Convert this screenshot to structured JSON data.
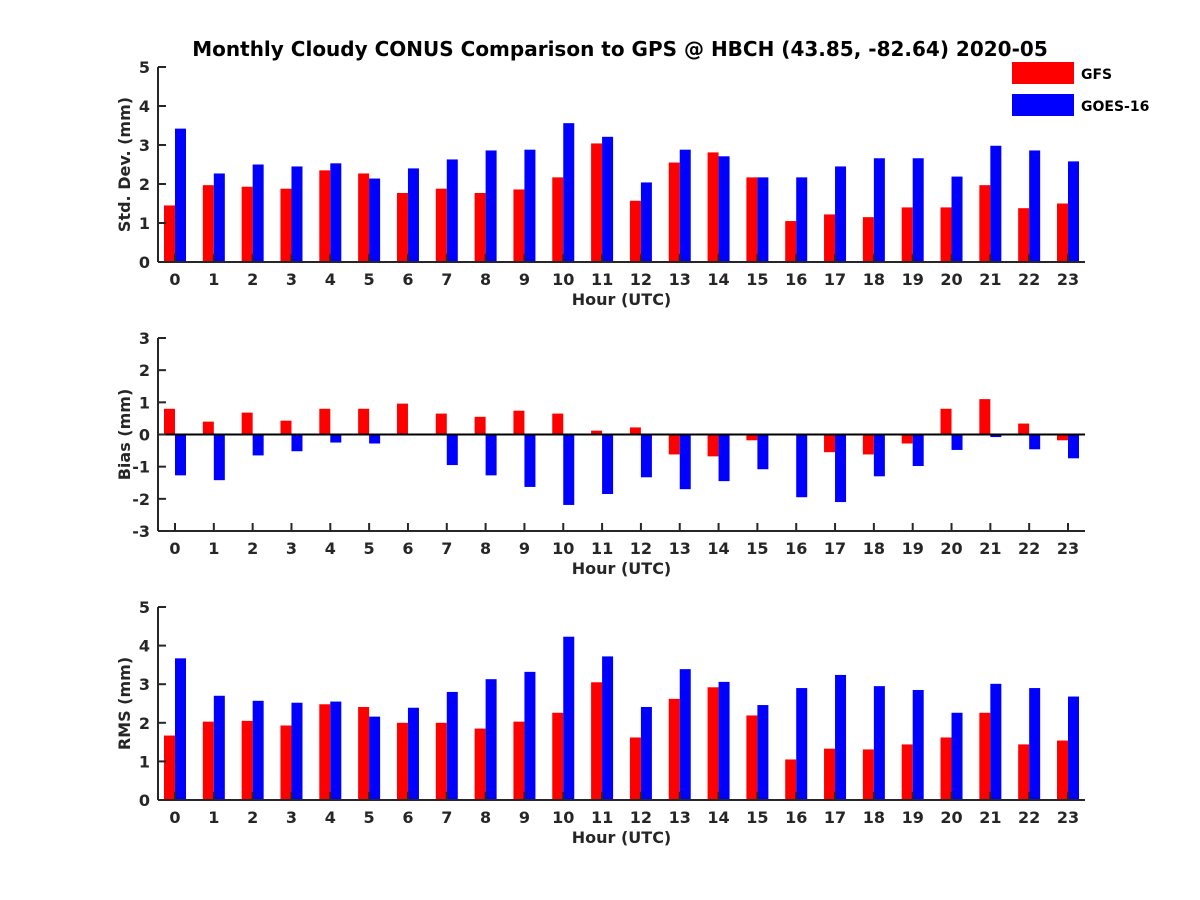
{
  "figure": {
    "title": "Monthly Cloudy CONUS Comparison to GPS @ HBCH (43.85, -82.64) 2020-05"
  },
  "legend": [
    {
      "label": "GFS",
      "color": "#ff0000"
    },
    {
      "label": "GOES-16",
      "color": "#0000ff"
    }
  ],
  "chart_data": [
    {
      "type": "bar",
      "xlabel": "Hour (UTC)",
      "ylabel": "Std. Dev. (mm)",
      "ylim": [
        0,
        5
      ],
      "yticks": [
        0,
        1,
        2,
        3,
        4,
        5
      ],
      "categories": [
        "0",
        "1",
        "2",
        "3",
        "4",
        "5",
        "6",
        "7",
        "8",
        "9",
        "10",
        "11",
        "12",
        "13",
        "14",
        "15",
        "16",
        "17",
        "18",
        "19",
        "20",
        "21",
        "22",
        "23"
      ],
      "series": [
        {
          "name": "GFS",
          "color": "#ff0000",
          "values": [
            1.45,
            1.97,
            1.93,
            1.88,
            2.35,
            2.27,
            1.77,
            1.88,
            1.77,
            1.86,
            2.17,
            3.04,
            1.57,
            2.55,
            2.81,
            2.17,
            1.05,
            1.22,
            1.15,
            1.4,
            1.4,
            1.97,
            1.38,
            1.5
          ]
        },
        {
          "name": "GOES-16",
          "color": "#0000ff",
          "values": [
            3.42,
            2.27,
            2.5,
            2.45,
            2.53,
            2.14,
            2.4,
            2.63,
            2.86,
            2.88,
            3.56,
            3.21,
            2.04,
            2.88,
            2.71,
            2.17,
            2.17,
            2.45,
            2.66,
            2.66,
            2.19,
            2.98,
            2.86,
            2.58
          ]
        }
      ]
    },
    {
      "type": "bar",
      "xlabel": "Hour (UTC)",
      "ylabel": "Bias (mm)",
      "ylim": [
        -3,
        3
      ],
      "yticks": [
        -3,
        -2,
        -1,
        0,
        1,
        2,
        3
      ],
      "categories": [
        "0",
        "1",
        "2",
        "3",
        "4",
        "5",
        "6",
        "7",
        "8",
        "9",
        "10",
        "11",
        "12",
        "13",
        "14",
        "15",
        "16",
        "17",
        "18",
        "19",
        "20",
        "21",
        "22",
        "23"
      ],
      "series": [
        {
          "name": "GFS",
          "color": "#ff0000",
          "values": [
            0.8,
            0.4,
            0.68,
            0.43,
            0.8,
            0.8,
            0.96,
            0.65,
            0.55,
            0.74,
            0.65,
            0.12,
            0.22,
            -0.62,
            -0.68,
            -0.18,
            -0.03,
            -0.55,
            -0.62,
            -0.28,
            0.8,
            1.1,
            0.34,
            -0.18
          ]
        },
        {
          "name": "GOES-16",
          "color": "#0000ff",
          "values": [
            -1.27,
            -1.42,
            -0.65,
            -0.52,
            -0.25,
            -0.28,
            0.0,
            -0.95,
            -1.27,
            -1.63,
            -2.19,
            -1.85,
            -1.33,
            -1.7,
            -1.45,
            -1.08,
            -1.95,
            -2.1,
            -1.3,
            -0.98,
            -0.48,
            -0.08,
            -0.46,
            -0.74
          ]
        }
      ]
    },
    {
      "type": "bar",
      "xlabel": "Hour (UTC)",
      "ylabel": "RMS (mm)",
      "ylim": [
        0,
        5
      ],
      "yticks": [
        0,
        1,
        2,
        3,
        4,
        5
      ],
      "categories": [
        "0",
        "1",
        "2",
        "3",
        "4",
        "5",
        "6",
        "7",
        "8",
        "9",
        "10",
        "11",
        "12",
        "13",
        "14",
        "15",
        "16",
        "17",
        "18",
        "19",
        "20",
        "21",
        "22",
        "23"
      ],
      "series": [
        {
          "name": "GFS",
          "color": "#ff0000",
          "values": [
            1.67,
            2.03,
            2.05,
            1.93,
            2.48,
            2.41,
            2.0,
            2.0,
            1.85,
            2.03,
            2.26,
            3.05,
            1.62,
            2.62,
            2.92,
            2.19,
            1.05,
            1.33,
            1.31,
            1.44,
            1.62,
            2.26,
            1.44,
            1.54
          ]
        },
        {
          "name": "GOES-16",
          "color": "#0000ff",
          "values": [
            3.67,
            2.7,
            2.57,
            2.52,
            2.55,
            2.16,
            2.39,
            2.8,
            3.13,
            3.32,
            4.23,
            3.72,
            2.41,
            3.39,
            3.06,
            2.46,
            2.9,
            3.24,
            2.95,
            2.85,
            2.26,
            3.01,
            2.9,
            2.68
          ]
        }
      ]
    }
  ]
}
